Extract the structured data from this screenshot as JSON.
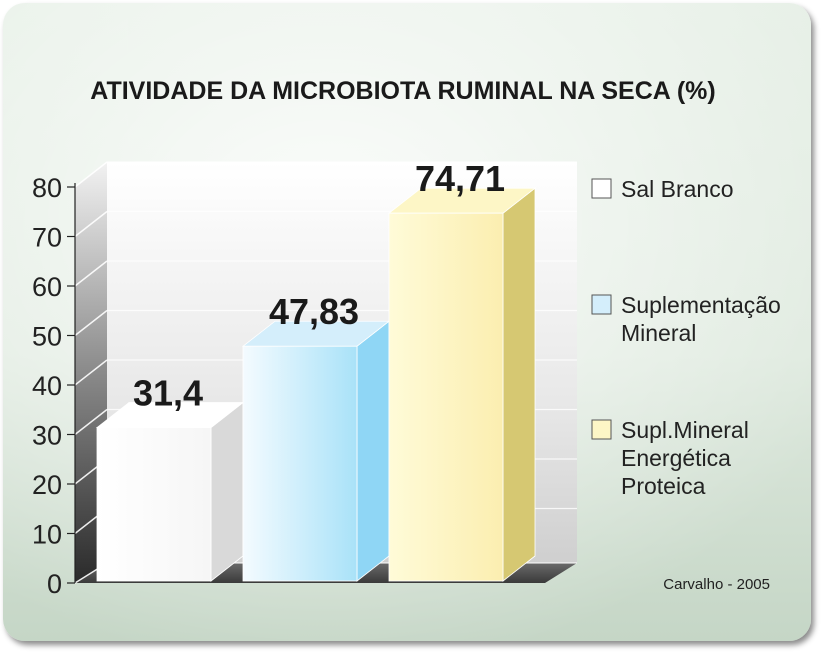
{
  "chart_data": {
    "type": "bar",
    "title": "ATIVIDADE DA MICROBIOTA RUMINAL NA SECA (%)",
    "categories": [
      "Sal Branco",
      "Suplementação Mineral",
      "Supl.Mineral Energética Proteica"
    ],
    "values": [
      31.4,
      47.83,
      74.71
    ],
    "value_labels": [
      "31,4",
      "47,83",
      "74,71"
    ],
    "ylim": [
      0,
      80
    ],
    "yticks": [
      0,
      10,
      20,
      30,
      40,
      50,
      60,
      70,
      80
    ],
    "xlabel": "",
    "ylabel": "",
    "grid": true,
    "legend_position": "right",
    "legend": [
      {
        "lines": [
          "Sal Branco"
        ],
        "color": "#ffffff",
        "side": "#d9d9d9"
      },
      {
        "lines": [
          "Suplementação",
          "Mineral"
        ],
        "color": "#d4eefb",
        "side": "#8fd6f5"
      },
      {
        "lines": [
          "Supl.Mineral",
          "Energética",
          "Proteica"
        ],
        "color": "#fdf6c6",
        "side": "#d6c872"
      }
    ],
    "source": "Carvalho - 2005"
  }
}
